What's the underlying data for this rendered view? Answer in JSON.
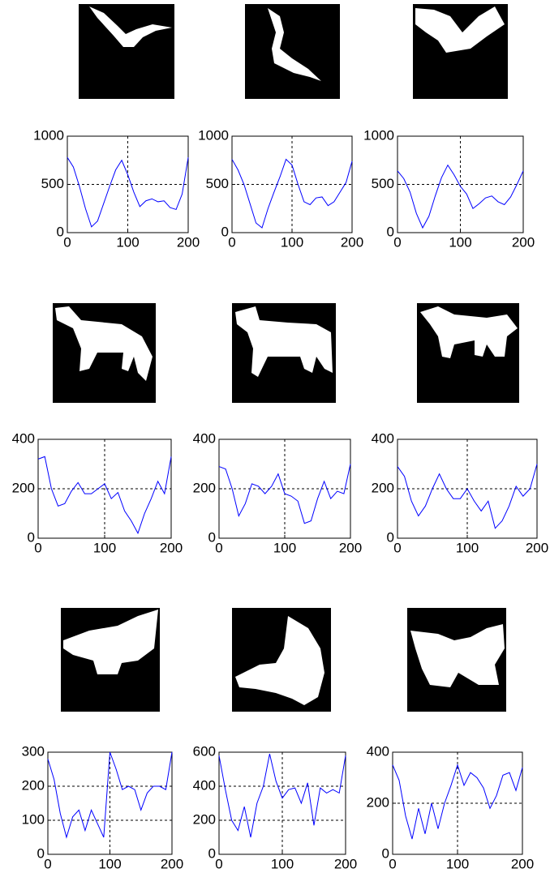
{
  "chart_data": [
    {
      "type": "line",
      "x": [
        0,
        10,
        20,
        30,
        40,
        50,
        60,
        70,
        80,
        90,
        100,
        110,
        120,
        130,
        140,
        150,
        160,
        170,
        180,
        190,
        200
      ],
      "values": [
        780,
        680,
        480,
        250,
        60,
        120,
        300,
        480,
        650,
        750,
        600,
        420,
        270,
        330,
        350,
        320,
        330,
        260,
        240,
        400,
        780
      ],
      "color": "#0000ff",
      "xlim": [
        0,
        200
      ],
      "ylim": [
        0,
        1000
      ],
      "xticks": [
        0,
        100,
        200
      ],
      "yticks": [
        0,
        500,
        1000
      ],
      "grid": true
    },
    {
      "type": "line",
      "x": [
        0,
        10,
        20,
        30,
        40,
        50,
        60,
        70,
        80,
        90,
        100,
        110,
        120,
        130,
        140,
        150,
        160,
        170,
        180,
        190,
        200
      ],
      "values": [
        760,
        650,
        500,
        300,
        100,
        50,
        250,
        420,
        580,
        760,
        700,
        500,
        320,
        290,
        360,
        370,
        280,
        320,
        420,
        520,
        740
      ],
      "color": "#0000ff",
      "xlim": [
        0,
        200
      ],
      "ylim": [
        0,
        1000
      ],
      "xticks": [
        0,
        100,
        200
      ],
      "yticks": [
        0,
        500,
        1000
      ],
      "grid": true
    },
    {
      "type": "line",
      "x": [
        0,
        10,
        20,
        30,
        40,
        50,
        60,
        70,
        80,
        90,
        100,
        110,
        120,
        130,
        140,
        150,
        160,
        170,
        180,
        190,
        200
      ],
      "values": [
        640,
        560,
        420,
        200,
        50,
        170,
        380,
        570,
        700,
        600,
        480,
        400,
        250,
        300,
        360,
        380,
        320,
        290,
        370,
        500,
        640
      ],
      "color": "#0000ff",
      "xlim": [
        0,
        200
      ],
      "ylim": [
        0,
        1000
      ],
      "xticks": [
        0,
        100,
        200
      ],
      "yticks": [
        0,
        500,
        1000
      ],
      "grid": true
    },
    {
      "type": "line",
      "x": [
        0,
        10,
        20,
        30,
        40,
        50,
        60,
        70,
        80,
        90,
        100,
        110,
        120,
        130,
        140,
        150,
        160,
        170,
        180,
        190,
        200
      ],
      "values": [
        320,
        330,
        200,
        130,
        140,
        190,
        225,
        180,
        180,
        200,
        220,
        160,
        185,
        110,
        70,
        20,
        100,
        160,
        230,
        180,
        330
      ],
      "color": "#0000ff",
      "xlim": [
        0,
        200
      ],
      "ylim": [
        0,
        400
      ],
      "xticks": [
        0,
        100,
        200
      ],
      "yticks": [
        0,
        200,
        400
      ],
      "grid": true
    },
    {
      "type": "line",
      "x": [
        0,
        10,
        20,
        30,
        40,
        50,
        60,
        70,
        80,
        90,
        100,
        110,
        120,
        130,
        140,
        150,
        160,
        170,
        180,
        190,
        200
      ],
      "values": [
        290,
        280,
        200,
        90,
        140,
        220,
        210,
        180,
        210,
        260,
        180,
        170,
        150,
        60,
        70,
        160,
        230,
        160,
        190,
        180,
        300
      ],
      "color": "#0000ff",
      "xlim": [
        0,
        200
      ],
      "ylim": [
        0,
        400
      ],
      "xticks": [
        0,
        100,
        200
      ],
      "yticks": [
        0,
        200,
        400
      ],
      "grid": true
    },
    {
      "type": "line",
      "x": [
        0,
        10,
        20,
        30,
        40,
        50,
        60,
        70,
        80,
        90,
        100,
        110,
        120,
        130,
        140,
        150,
        160,
        170,
        180,
        190,
        200
      ],
      "values": [
        290,
        250,
        150,
        90,
        130,
        200,
        260,
        200,
        160,
        160,
        200,
        150,
        110,
        150,
        40,
        70,
        130,
        210,
        170,
        200,
        300
      ],
      "color": "#0000ff",
      "xlim": [
        0,
        200
      ],
      "ylim": [
        0,
        400
      ],
      "xticks": [
        0,
        100,
        200
      ],
      "yticks": [
        0,
        200,
        400
      ],
      "grid": true
    },
    {
      "type": "line",
      "x": [
        0,
        10,
        20,
        30,
        40,
        50,
        60,
        70,
        80,
        90,
        100,
        110,
        120,
        130,
        140,
        150,
        160,
        170,
        180,
        190,
        200
      ],
      "values": [
        280,
        220,
        120,
        50,
        110,
        130,
        70,
        130,
        90,
        50,
        300,
        250,
        190,
        200,
        190,
        130,
        180,
        200,
        200,
        190,
        300
      ],
      "color": "#0000ff",
      "xlim": [
        0,
        200
      ],
      "ylim": [
        0,
        300
      ],
      "xticks": [
        0,
        100,
        200
      ],
      "yticks": [
        0,
        100,
        200,
        300
      ],
      "grid": true
    },
    {
      "type": "line",
      "x": [
        0,
        10,
        20,
        30,
        40,
        50,
        60,
        70,
        80,
        90,
        100,
        110,
        120,
        130,
        140,
        150,
        160,
        170,
        180,
        190,
        200
      ],
      "values": [
        580,
        380,
        200,
        140,
        280,
        100,
        300,
        400,
        590,
        430,
        330,
        380,
        390,
        300,
        420,
        170,
        390,
        360,
        380,
        360,
        580
      ],
      "color": "#0000ff",
      "xlim": [
        0,
        200
      ],
      "ylim": [
        0,
        600
      ],
      "xticks": [
        0,
        100,
        200
      ],
      "yticks": [
        0,
        200,
        400,
        600
      ],
      "grid": true
    },
    {
      "type": "line",
      "x": [
        0,
        10,
        20,
        30,
        40,
        50,
        60,
        70,
        80,
        90,
        100,
        110,
        120,
        130,
        140,
        150,
        160,
        170,
        180,
        190,
        200
      ],
      "values": [
        350,
        290,
        150,
        60,
        180,
        80,
        200,
        100,
        200,
        270,
        350,
        270,
        320,
        300,
        260,
        180,
        230,
        310,
        320,
        250,
        340
      ],
      "color": "#0000ff",
      "xlim": [
        0,
        200
      ],
      "ylim": [
        0,
        400
      ],
      "xticks": [
        0,
        100,
        200
      ],
      "yticks": [
        0,
        200,
        400
      ],
      "grid": true
    }
  ]
}
